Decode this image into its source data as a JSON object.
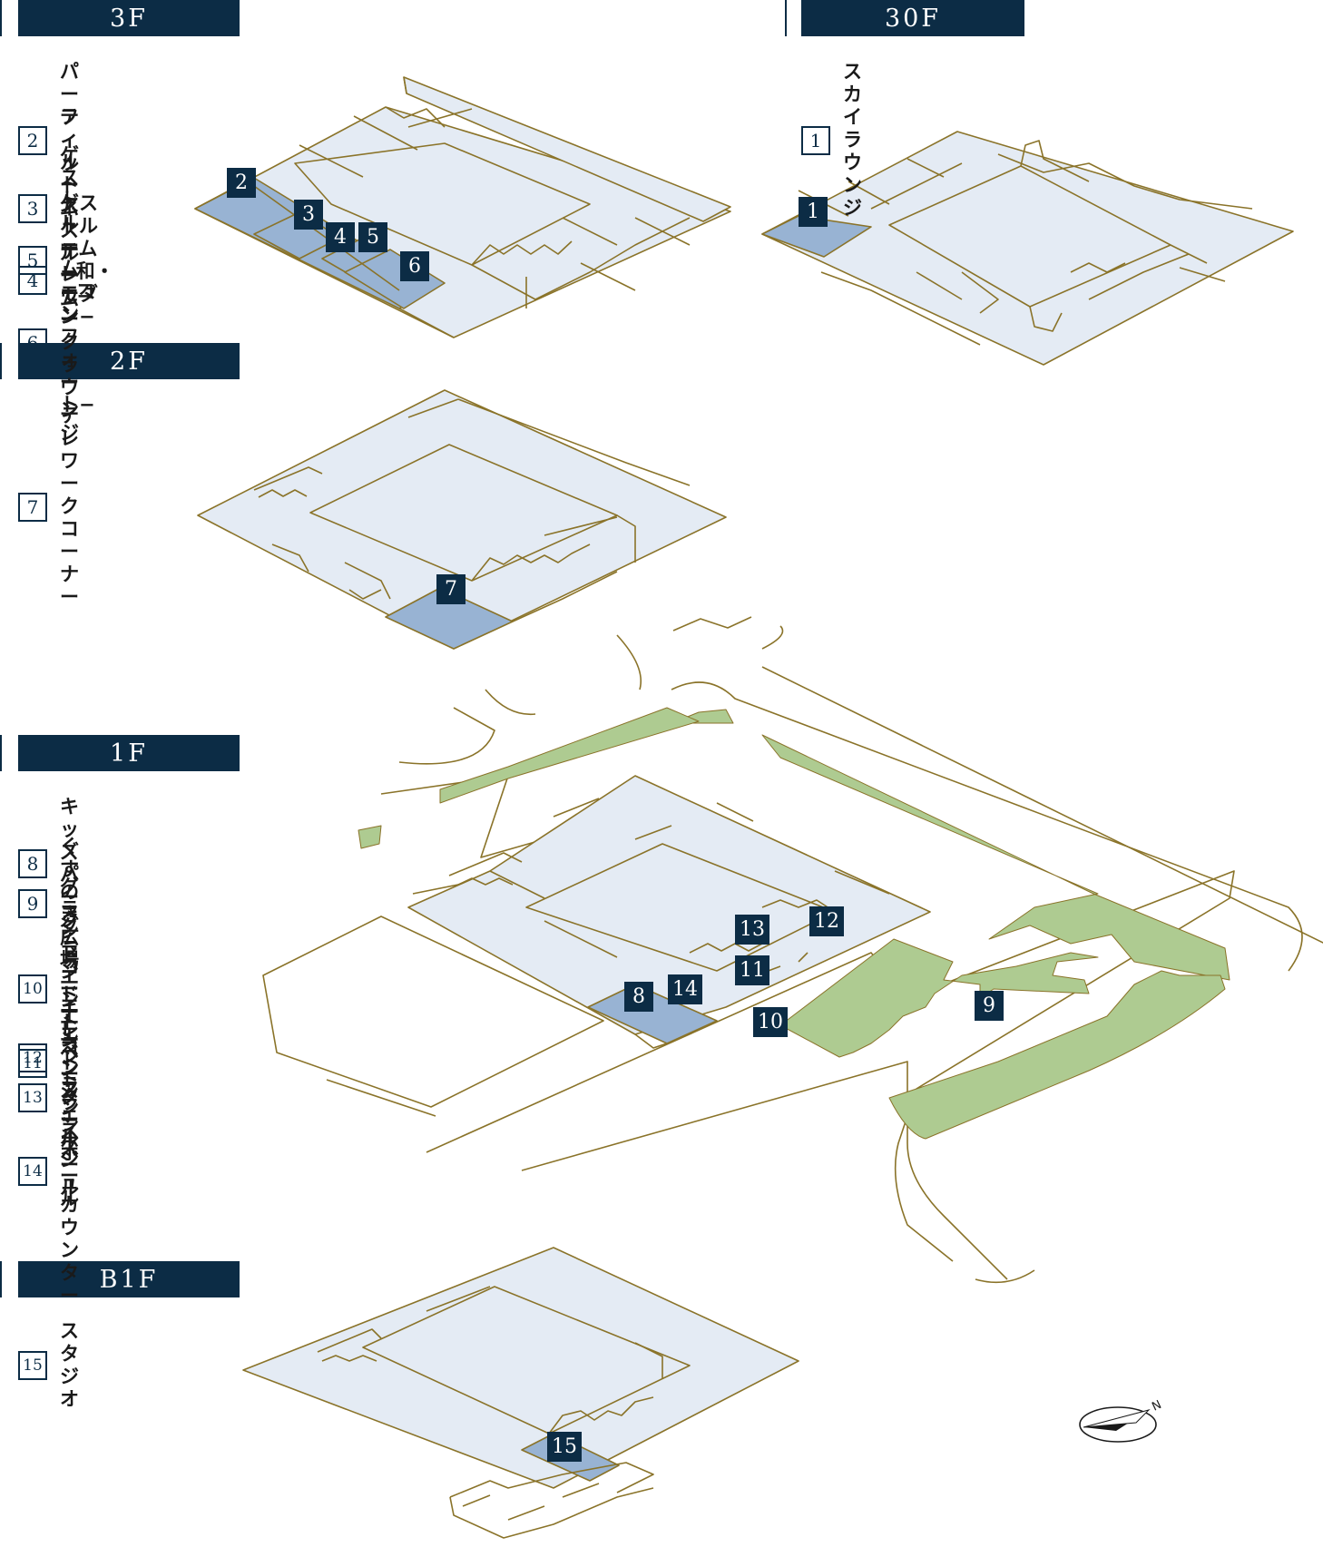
{
  "floors": {
    "f3": {
      "label": "3F"
    },
    "f30": {
      "label": "30F"
    },
    "f2": {
      "label": "2F"
    },
    "f1": {
      "label": "1F"
    },
    "b1": {
      "label": "B1F"
    }
  },
  "legend": {
    "f3": [
      {
        "num": "2",
        "label": "パーティルーム"
      },
      {
        "num": "3",
        "label": "フィットネスルーム"
      },
      {
        "num": "4",
        "label": "ゲストルーム\n−コンフォート−"
      },
      {
        "num": "5",
        "label": "ゲストルーム\n−和・モダン−"
      },
      {
        "num": "6",
        "label": "テレワーク\nラウンジ"
      }
    ],
    "f30": [
      {
        "num": "1",
        "label": "スカイラウンジ"
      }
    ],
    "f2": [
      {
        "num": "7",
        "label": "テレワークコーナー"
      }
    ],
    "f1": [
      {
        "num": "8",
        "label": "キッズパーク"
      },
      {
        "num": "9",
        "label": "くすのき広場"
      },
      {
        "num": "10",
        "label": "グランドエントランス"
      },
      {
        "num": "11",
        "label": "グランドエントランスホール"
      },
      {
        "num": "12",
        "label": "コーチエントランス"
      },
      {
        "num": "13",
        "label": "エレベーターホール"
      },
      {
        "num": "14",
        "label": "コンシェルジュカウンター"
      }
    ],
    "b1": [
      {
        "num": "15",
        "label": "スタジオ"
      }
    ]
  },
  "pins": {
    "p1": "1",
    "p2": "2",
    "p3": "3",
    "p4": "4",
    "p5": "5",
    "p6": "6",
    "p7": "7",
    "p8": "8",
    "p9": "9",
    "p10": "10",
    "p11": "11",
    "p12": "12",
    "p13": "13",
    "p14": "14",
    "p15": "15"
  },
  "compass": {
    "north_letter": "N"
  },
  "colors": {
    "navy": "#0c2c45",
    "floor_fill": "#e4ebf4",
    "highlight_fill": "#98b3d3",
    "green": "#aecb91",
    "outline": "#8a7329"
  }
}
